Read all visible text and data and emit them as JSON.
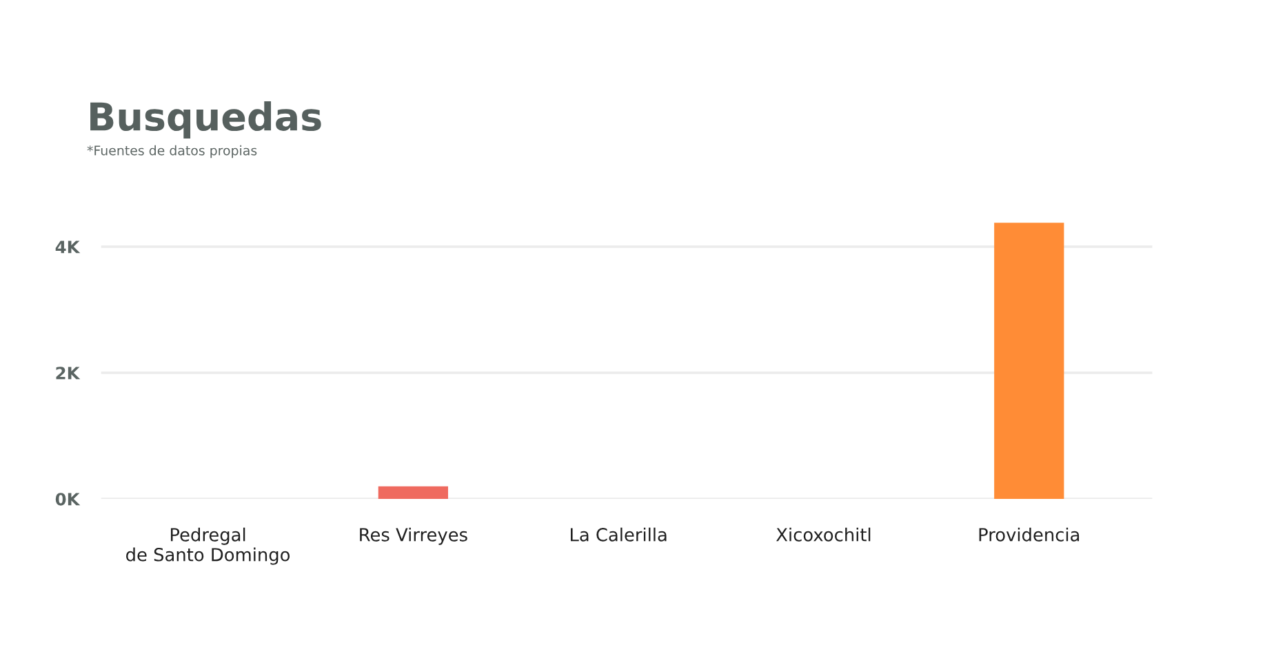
{
  "chart_data": {
    "type": "bar",
    "title": "Busquedas",
    "subtitle": "*Fuentes de datos propias",
    "categories": [
      "Pedregal\nde Santo Domingo",
      "Res Virreyes",
      "La Calerilla",
      "Xicoxochitl",
      "Providencia"
    ],
    "values": [
      0,
      200,
      0,
      0,
      4380
    ],
    "colors": [
      "#3fc1a5",
      "#ef6a5f",
      "#5b8def",
      "#f5c242",
      "#ff8c36"
    ],
    "ylim": [
      0,
      4380
    ],
    "yticks": [
      {
        "value": 0,
        "label": "0K"
      },
      {
        "value": 2000,
        "label": "2K"
      },
      {
        "value": 4000,
        "label": "4K"
      }
    ],
    "grid": "y"
  }
}
